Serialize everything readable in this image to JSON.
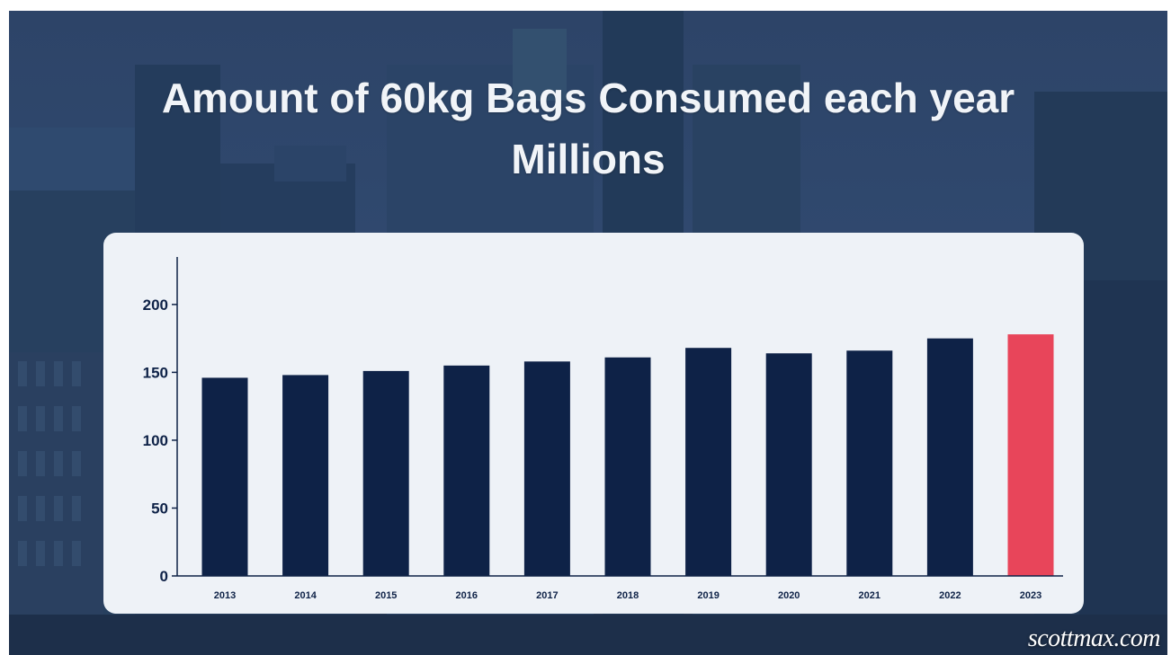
{
  "title": {
    "line1": "Amount of 60kg Bags Consumed each year",
    "line2": "Millions"
  },
  "watermark": "scottmax.com",
  "colors": {
    "bar": "#0e2247",
    "highlight": "#e8455a",
    "axis": "#0e2247",
    "card": "#eef2f7"
  },
  "chart_data": {
    "type": "bar",
    "categories": [
      "2013",
      "2014",
      "2015",
      "2016",
      "2017",
      "2018",
      "2019",
      "2020",
      "2021",
      "2022",
      "2023"
    ],
    "values": [
      146,
      148,
      151,
      155,
      158,
      161,
      168,
      164,
      166,
      175,
      178
    ],
    "highlight_category": "2023",
    "yticks": [
      0,
      50,
      100,
      150,
      200
    ],
    "ylim": [
      0,
      235
    ],
    "xlabel": "",
    "ylabel": "",
    "grid": false,
    "legend": "none"
  }
}
